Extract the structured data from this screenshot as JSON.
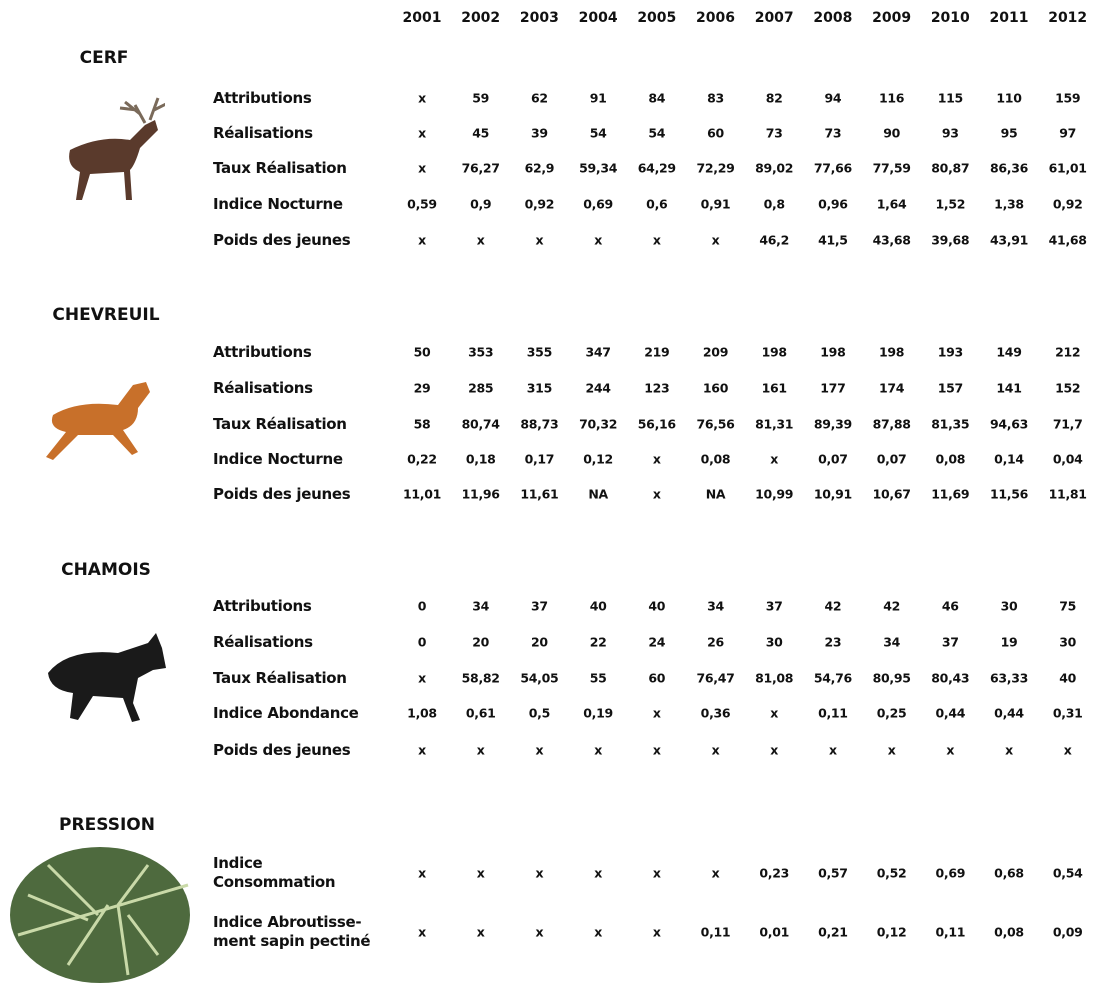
{
  "years": [
    "2001",
    "2002",
    "2003",
    "2004",
    "2005",
    "2006",
    "2007",
    "2008",
    "2009",
    "2010",
    "2011",
    "2012"
  ],
  "sections": [
    {
      "title": "CERF",
      "rows": [
        {
          "label": "Attributions",
          "values": [
            "x",
            "59",
            "62",
            "91",
            "84",
            "83",
            "82",
            "94",
            "116",
            "115",
            "110",
            "159"
          ]
        },
        {
          "label": "Réalisations",
          "values": [
            "x",
            "45",
            "39",
            "54",
            "54",
            "60",
            "73",
            "73",
            "90",
            "93",
            "95",
            "97"
          ]
        },
        {
          "label": "Taux Réalisation",
          "values": [
            "x",
            "76,27",
            "62,9",
            "59,34",
            "64,29",
            "72,29",
            "89,02",
            "77,66",
            "77,59",
            "80,87",
            "86,36",
            "61,01"
          ]
        },
        {
          "label": "Indice Nocturne",
          "values": [
            "0,59",
            "0,9",
            "0,92",
            "0,69",
            "0,6",
            "0,91",
            "0,8",
            "0,96",
            "1,64",
            "1,52",
            "1,38",
            "0,92"
          ]
        },
        {
          "label": "Poids des jeunes",
          "values": [
            "x",
            "x",
            "x",
            "x",
            "x",
            "x",
            "46,2",
            "41,5",
            "43,68",
            "39,68",
            "43,91",
            "41,68"
          ]
        }
      ]
    },
    {
      "title": "CHEVREUIL",
      "rows": [
        {
          "label": "Attributions",
          "values": [
            "50",
            "353",
            "355",
            "347",
            "219",
            "209",
            "198",
            "198",
            "198",
            "193",
            "149",
            "212"
          ]
        },
        {
          "label": "Réalisations",
          "values": [
            "29",
            "285",
            "315",
            "244",
            "123",
            "160",
            "161",
            "177",
            "174",
            "157",
            "141",
            "152"
          ]
        },
        {
          "label": "Taux Réalisation",
          "values": [
            "58",
            "80,74",
            "88,73",
            "70,32",
            "56,16",
            "76,56",
            "81,31",
            "89,39",
            "87,88",
            "81,35",
            "94,63",
            "71,7"
          ]
        },
        {
          "label": "Indice Nocturne",
          "values": [
            "0,22",
            "0,18",
            "0,17",
            "0,12",
            "x",
            "0,08",
            "x",
            "0,07",
            "0,07",
            "0,08",
            "0,14",
            "0,04"
          ]
        },
        {
          "label": "Poids des jeunes",
          "values": [
            "11,01",
            "11,96",
            "11,61",
            "NA",
            "x",
            "NA",
            "10,99",
            "10,91",
            "10,67",
            "11,69",
            "11,56",
            "11,81"
          ]
        }
      ]
    },
    {
      "title": "CHAMOIS",
      "rows": [
        {
          "label": "Attributions",
          "values": [
            "0",
            "34",
            "37",
            "40",
            "40",
            "34",
            "37",
            "42",
            "42",
            "46",
            "30",
            "75"
          ]
        },
        {
          "label": "Réalisations",
          "values": [
            "0",
            "20",
            "20",
            "22",
            "24",
            "26",
            "30",
            "23",
            "34",
            "37",
            "19",
            "30"
          ]
        },
        {
          "label": "Taux Réalisation",
          "values": [
            "x",
            "58,82",
            "54,05",
            "55",
            "60",
            "76,47",
            "81,08",
            "54,76",
            "80,95",
            "80,43",
            "63,33",
            "40"
          ]
        },
        {
          "label": "Indice Abondance",
          "values": [
            "1,08",
            "0,61",
            "0,5",
            "0,19",
            "x",
            "0,36",
            "x",
            "0,11",
            "0,25",
            "0,44",
            "0,44",
            "0,31"
          ]
        },
        {
          "label": "Poids des jeunes",
          "values": [
            "x",
            "x",
            "x",
            "x",
            "x",
            "x",
            "x",
            "x",
            "x",
            "x",
            "x",
            "x"
          ]
        }
      ]
    },
    {
      "title": "PRESSION",
      "rows": [
        {
          "label": "Indice Consommation",
          "values": [
            "x",
            "x",
            "x",
            "x",
            "x",
            "x",
            "0,23",
            "0,57",
            "0,52",
            "0,69",
            "0,68",
            "0,54"
          ]
        },
        {
          "label": "Indice Abroutisse-ment sapin pectiné",
          "values": [
            "x",
            "x",
            "x",
            "x",
            "x",
            "0,11",
            "0,01",
            "0,21",
            "0,12",
            "0,11",
            "0,08",
            "0,09"
          ]
        }
      ]
    }
  ]
}
